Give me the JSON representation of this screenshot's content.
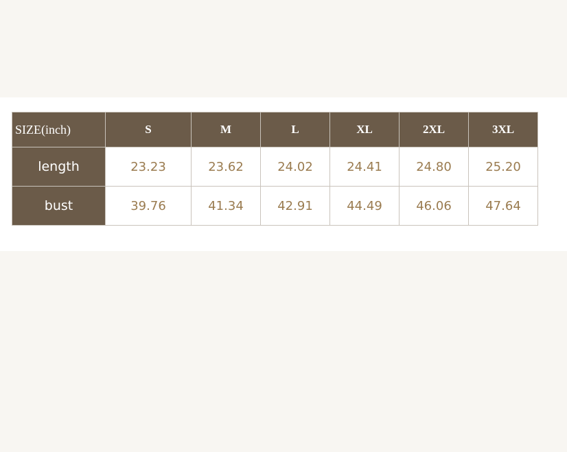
{
  "table": {
    "header": [
      "SIZE(inch)",
      "S",
      "M",
      "L",
      "XL",
      "2XL",
      "3XL"
    ],
    "rows": [
      [
        "length",
        "23.23",
        "23.62",
        "24.02",
        "24.41",
        "24.80",
        "25.20"
      ],
      [
        "bust",
        "39.76",
        "41.34",
        "42.91",
        "44.49",
        "46.06",
        "47.64"
      ]
    ]
  }
}
